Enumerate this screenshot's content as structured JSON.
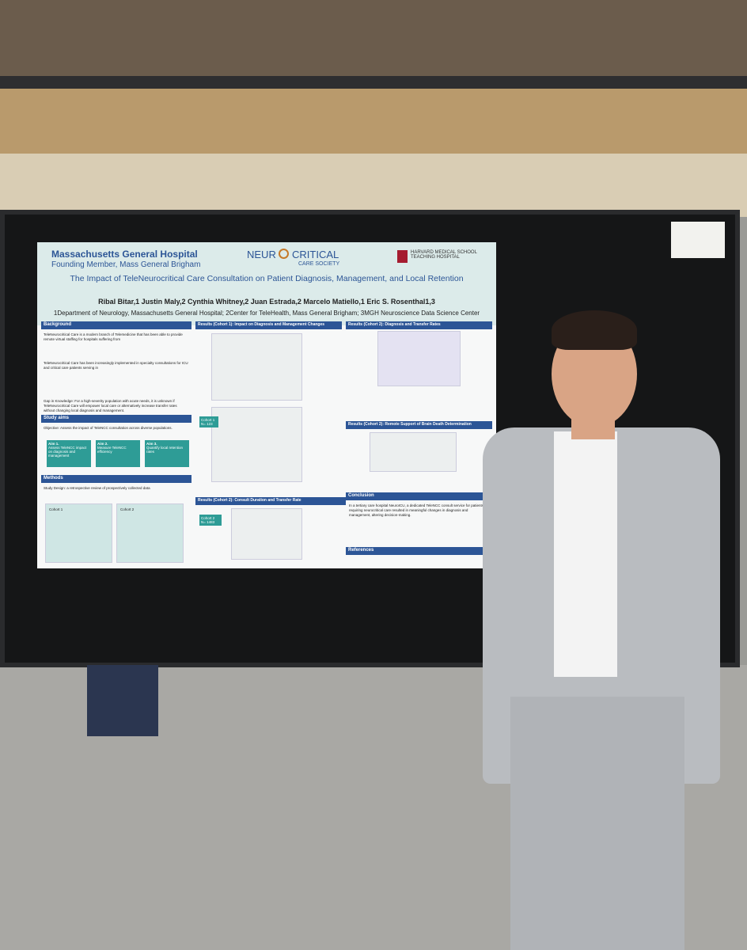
{
  "poster": {
    "header": {
      "institution": "Massachusetts General Hospital",
      "institution_sub": "Founding Member, Mass General Brigham",
      "society_left": "NEUR",
      "society_right": "CRITICAL",
      "society_sub": "CARE SOCIETY",
      "harvard": "HARVARD MEDICAL SCHOOL TEACHING HOSPITAL"
    },
    "title": "The Impact of TeleNeurocritical Care Consultation on Patient Diagnosis, Management, and Local Retention",
    "authors": "Ribal Bitar,1 Justin Maly,2 Cynthia Whitney,2 Juan Estrada,2 Marcelo Matiello,1 Eric S. Rosenthal1,3",
    "affiliations": "1Department of Neurology, Massachusetts General Hospital; 2Center for TeleHealth, Mass General Brigham; 3MGH Neuroscience Data Science Center",
    "background": {
      "heading": "Background",
      "text1": "TeleNeurocritical Care is a modern branch of Telemedicine that has been able to provide remote virtual staffing for hospitals suffering from",
      "text2": "TeleNeurocritical Care has been increasingly implemented in specialty consultations for ICU and critical care patients serving in",
      "gap": "Gap in Knowledge: For a high-severity population with acute needs, it is unknown if TeleNeurocritical Care will empower local care or alternatively increase transfer rates without changing local diagnosis and management."
    },
    "aims": {
      "heading": "Study aims",
      "objective": "Objective: Assess the impact of TeleNCC consultation across diverse populations.",
      "aim1_label": "Aim 1.",
      "aim1": "Assess TeleNCC impact on diagnosis and management",
      "aim2_label": "Aim 2.",
      "aim2": "Measure TeleNCC efficiency",
      "aim3_label": "Aim 3.",
      "aim3": "Quantify local retention rates"
    },
    "methods": {
      "heading": "Methods",
      "design": "Study Design: a retrospective review of prospectively collected data",
      "cohort1": "Cohort 1",
      "cohort2": "Cohort 2"
    },
    "results": {
      "r1": "Results (Cohort 1): Impact on Diagnosis and Management Changes",
      "r2": "Results (Cohort 2): Diagnosis and Transfer Rates",
      "r3": "Results (Cohort 2): Remote Support of Brain Death Determination",
      "r4": "Results (Cohort 2): Consult Duration and Transfer Rate",
      "c1": "Cohort 1",
      "c1n": "N= 123",
      "c2": "Cohort 2",
      "c2n": "N= 1483"
    },
    "conclusion": {
      "heading": "Conclusion",
      "text": "In a tertiary care hospital NeuroICU, a dedicated TeleNCC consult service for patients requiring neurocritical care resulted in meaningful changes in diagnosis and management, altering decision-making."
    },
    "references": {
      "heading": "References"
    }
  }
}
